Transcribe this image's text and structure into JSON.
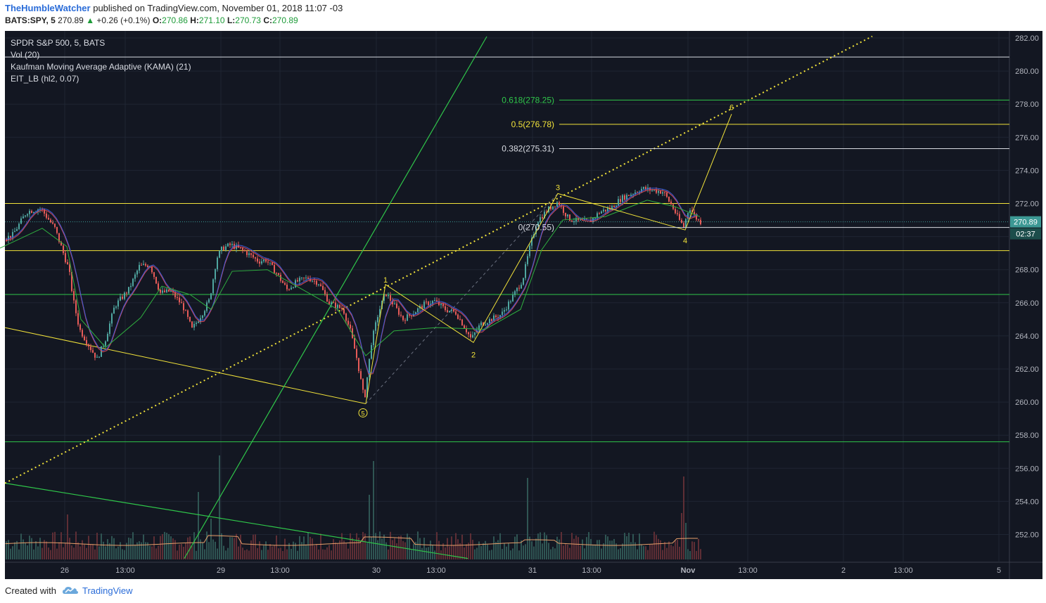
{
  "header": {
    "author": "TheHumbleWatcher",
    "published_text": "published on TradingView.com, November 01, 2018 11:07 -03",
    "symbol": "BATS:SPY, 5",
    "last": "270.89",
    "change": "+0.26 (+0.1%)",
    "o_label": "O:",
    "o_value": "270.86",
    "h_label": "H:",
    "h_value": "271.10",
    "l_label": "L:",
    "l_value": "270.73",
    "c_label": "C:",
    "c_value": "270.89"
  },
  "legend": {
    "title": "SPDR S&P 500, 5, BATS",
    "vol": "Vol (20)",
    "kama": "Kaufman Moving Average Adaptive (KAMA) (21)",
    "eit": "EIT_LB (hl2, 0.07)"
  },
  "footer": {
    "created": "Created with",
    "brand": "TradingView"
  },
  "colors": {
    "background": "#131722",
    "bull": "#4fa6a0",
    "bear": "#e65b58",
    "fib_green": "#2fc64a",
    "fib_yellow": "#f2e33a",
    "wave": "#f2e33a",
    "price_label": "#3c9894"
  },
  "chart_data": {
    "type": "candlestick",
    "title": "SPDR S&P 500, 5, BATS",
    "ylim": [
      250.5,
      282.5
    ],
    "y_ticks": [
      "282.00",
      "280.00",
      "278.00",
      "276.00",
      "274.00",
      "272.00",
      "270.00",
      "268.00",
      "266.00",
      "264.00",
      "262.00",
      "260.00",
      "258.00",
      "256.00",
      "254.00",
      "252.00"
    ],
    "x_ticks": [
      "26",
      "13:00",
      "29",
      "13:00",
      "30",
      "13:00",
      "31",
      "13:00",
      "Nov",
      "13:00",
      "2",
      "13:00",
      "5"
    ],
    "price_path": [
      [
        0,
        269.7
      ],
      [
        20,
        270.1
      ],
      [
        40,
        271.5
      ],
      [
        60,
        271.7
      ],
      [
        80,
        270.5
      ],
      [
        100,
        268.0
      ],
      [
        106,
        266.2
      ],
      [
        115,
        264.4
      ],
      [
        130,
        263.3
      ],
      [
        140,
        262.6
      ],
      [
        152,
        263.8
      ],
      [
        165,
        265.8
      ],
      [
        185,
        266.8
      ],
      [
        200,
        268.2
      ],
      [
        215,
        268.3
      ],
      [
        230,
        266.6
      ],
      [
        245,
        266.7
      ],
      [
        262,
        265.8
      ],
      [
        275,
        264.4
      ],
      [
        290,
        265.4
      ],
      [
        300,
        266.2
      ],
      [
        310,
        268.7
      ],
      [
        318,
        269.3
      ],
      [
        330,
        269.5
      ],
      [
        350,
        269.1
      ],
      [
        370,
        268.5
      ],
      [
        380,
        268.6
      ],
      [
        395,
        267.8
      ],
      [
        410,
        266.8
      ],
      [
        425,
        267.3
      ],
      [
        440,
        267.5
      ],
      [
        455,
        267.2
      ],
      [
        470,
        266.0
      ],
      [
        490,
        265.6
      ],
      [
        500,
        264.3
      ],
      [
        510,
        262.5
      ],
      [
        520,
        260.1
      ],
      [
        530,
        263.6
      ],
      [
        540,
        265.4
      ],
      [
        550,
        266.6
      ],
      [
        560,
        266.0
      ],
      [
        575,
        265.0
      ],
      [
        590,
        265.4
      ],
      [
        605,
        265.9
      ],
      [
        620,
        266.1
      ],
      [
        635,
        265.6
      ],
      [
        650,
        265.4
      ],
      [
        660,
        264.7
      ],
      [
        672,
        263.8
      ],
      [
        685,
        264.7
      ],
      [
        700,
        265.0
      ],
      [
        715,
        265.3
      ],
      [
        730,
        266.3
      ],
      [
        745,
        267.4
      ],
      [
        755,
        269.3
      ],
      [
        765,
        270.9
      ],
      [
        780,
        271.6
      ],
      [
        795,
        272.1
      ],
      [
        810,
        271.1
      ],
      [
        825,
        270.9
      ],
      [
        840,
        270.9
      ],
      [
        855,
        271.5
      ],
      [
        870,
        271.7
      ],
      [
        885,
        272.3
      ],
      [
        900,
        272.6
      ],
      [
        915,
        272.9
      ],
      [
        930,
        272.8
      ],
      [
        945,
        272.7
      ],
      [
        958,
        271.8
      ],
      [
        966,
        271.1
      ],
      [
        974,
        270.6
      ],
      [
        982,
        271.8
      ],
      [
        990,
        271.2
      ],
      [
        997,
        270.89
      ]
    ],
    "volume_ylim": [
      0,
      8
    ],
    "volume_spikes": [
      [
        95,
        3.2
      ],
      [
        282,
        4.8
      ],
      [
        300,
        2.9
      ],
      [
        310,
        7.4
      ],
      [
        525,
        4.6
      ],
      [
        530,
        7.0
      ],
      [
        748,
        2.8
      ],
      [
        750,
        5.8
      ],
      [
        968,
        3.3
      ],
      [
        972,
        5.9
      ],
      [
        975,
        2.6
      ]
    ],
    "kama_path": [
      [
        0,
        269.3
      ],
      [
        60,
        270.5
      ],
      [
        95,
        269.4
      ],
      [
        115,
        265.0
      ],
      [
        150,
        263.3
      ],
      [
        200,
        265.1
      ],
      [
        230,
        267.0
      ],
      [
        270,
        266.5
      ],
      [
        300,
        265.6
      ],
      [
        330,
        267.9
      ],
      [
        380,
        268.0
      ],
      [
        430,
        266.8
      ],
      [
        480,
        265.6
      ],
      [
        520,
        262.8
      ],
      [
        560,
        264.3
      ],
      [
        620,
        264.5
      ],
      [
        690,
        264.4
      ],
      [
        740,
        265.6
      ],
      [
        770,
        269.2
      ],
      [
        800,
        271.0
      ],
      [
        860,
        271.2
      ],
      [
        920,
        272.2
      ],
      [
        960,
        271.8
      ],
      [
        995,
        271.2
      ]
    ],
    "fib_levels": [
      {
        "label": "0.618(278.25)",
        "value": 278.25,
        "color": "#2fc64a"
      },
      {
        "label": "0.5(276.78)",
        "value": 276.78,
        "color": "#f2e33a"
      },
      {
        "label": "0.382(275.31)",
        "value": 275.31,
        "color": "#d9dce3"
      },
      {
        "label": "0(270.55)",
        "value": 270.55,
        "color": "#d9dce3"
      }
    ],
    "horizontal_levels": [
      {
        "value": 280.85,
        "color": "#d9dce3"
      },
      {
        "value": 272.0,
        "color": "#f2e33a"
      },
      {
        "value": 269.15,
        "color": "#f2e33a"
      },
      {
        "value": 266.5,
        "color": "#2fc64a"
      },
      {
        "value": 257.6,
        "color": "#2fc64a"
      }
    ],
    "wave_points": [
      {
        "label": "⑤",
        "x": 520,
        "y": 259.9
      },
      {
        "label": "1",
        "x": 548,
        "y": 267.1
      },
      {
        "label": "2",
        "x": 673,
        "y": 263.6
      },
      {
        "label": "3",
        "x": 793,
        "y": 272.6
      },
      {
        "label": "4",
        "x": 974,
        "y": 270.4
      },
      {
        "label": "6",
        "x": 1040,
        "y": 277.4
      }
    ],
    "last_price": "270.89",
    "countdown": "02:37",
    "x_axis_tick_positions": [
      92,
      178,
      314,
      398,
      535,
      620,
      757,
      841,
      978,
      1063,
      1199,
      1284,
      1420
    ]
  }
}
